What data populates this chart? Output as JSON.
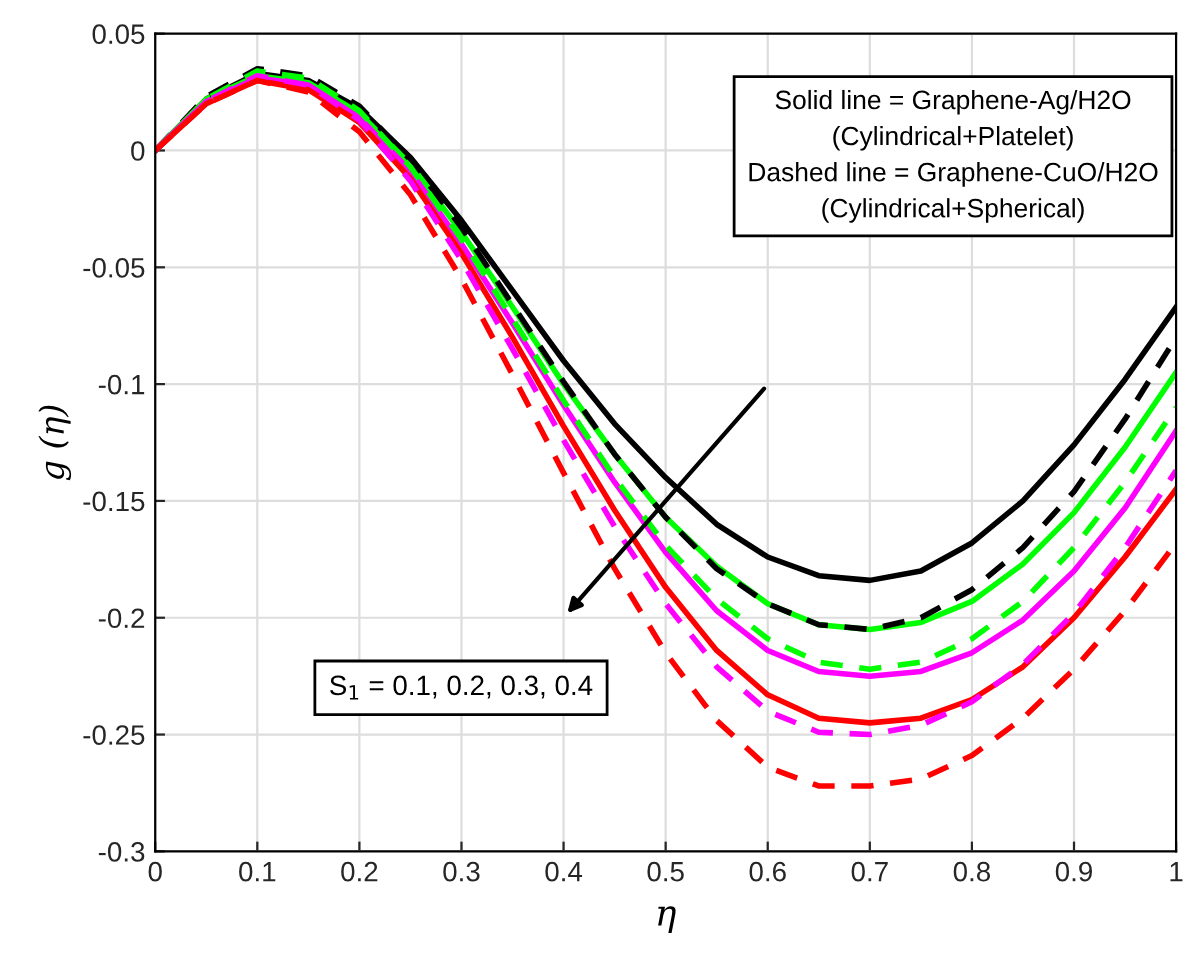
{
  "chart_data": {
    "type": "line",
    "xlabel": "η",
    "ylabel": "g (η)",
    "x": [
      0,
      0.05,
      0.1,
      0.15,
      0.2,
      0.25,
      0.3,
      0.35,
      0.4,
      0.45,
      0.5,
      0.55,
      0.6,
      0.65,
      0.7,
      0.75,
      0.8,
      0.85,
      0.9,
      0.95,
      1
    ],
    "series": [
      {
        "color": "#000000",
        "line_style": "solid",
        "values": [
          0,
          0.022,
          0.033,
          0.03,
          0.018,
          -0.003,
          -0.03,
          -0.06,
          -0.09,
          -0.117,
          -0.14,
          -0.16,
          -0.174,
          -0.182,
          -0.184,
          -0.18,
          -0.168,
          -0.15,
          -0.126,
          -0.098,
          -0.067
        ]
      },
      {
        "color": "#00ff00",
        "line_style": "solid",
        "values": [
          0,
          0.022,
          0.032,
          0.029,
          0.016,
          -0.006,
          -0.035,
          -0.067,
          -0.1,
          -0.13,
          -0.157,
          -0.178,
          -0.194,
          -0.203,
          -0.205,
          -0.202,
          -0.193,
          -0.177,
          -0.155,
          -0.127,
          -0.095
        ]
      },
      {
        "color": "#ff00ff",
        "line_style": "solid",
        "values": [
          0,
          0.021,
          0.031,
          0.028,
          0.014,
          -0.009,
          -0.04,
          -0.074,
          -0.109,
          -0.142,
          -0.172,
          -0.197,
          -0.214,
          -0.223,
          -0.225,
          -0.223,
          -0.215,
          -0.201,
          -0.18,
          -0.153,
          -0.12
        ]
      },
      {
        "color": "#ff0000",
        "line_style": "solid",
        "values": [
          0,
          0.02,
          0.03,
          0.026,
          0.012,
          -0.012,
          -0.044,
          -0.08,
          -0.118,
          -0.154,
          -0.187,
          -0.214,
          -0.233,
          -0.243,
          -0.245,
          -0.243,
          -0.235,
          -0.221,
          -0.2,
          -0.174,
          -0.145
        ]
      },
      {
        "color": "#000000",
        "line_style": "dashed",
        "values": [
          0,
          0.023,
          0.035,
          0.032,
          0.019,
          -0.004,
          -0.033,
          -0.066,
          -0.099,
          -0.13,
          -0.157,
          -0.179,
          -0.194,
          -0.203,
          -0.205,
          -0.2,
          -0.188,
          -0.17,
          -0.146,
          -0.115,
          -0.08
        ]
      },
      {
        "color": "#00ff00",
        "line_style": "dashed",
        "values": [
          0,
          0.022,
          0.034,
          0.031,
          0.017,
          -0.007,
          -0.038,
          -0.072,
          -0.107,
          -0.14,
          -0.169,
          -0.192,
          -0.209,
          -0.219,
          -0.222,
          -0.219,
          -0.209,
          -0.193,
          -0.17,
          -0.142,
          -0.11
        ]
      },
      {
        "color": "#ff00ff",
        "line_style": "dashed",
        "values": [
          0,
          0.021,
          0.032,
          0.028,
          0.013,
          -0.013,
          -0.047,
          -0.085,
          -0.124,
          -0.161,
          -0.194,
          -0.221,
          -0.24,
          -0.249,
          -0.25,
          -0.246,
          -0.236,
          -0.22,
          -0.198,
          -0.17,
          -0.137
        ]
      },
      {
        "color": "#ff0000",
        "line_style": "dashed",
        "values": [
          0,
          0.02,
          0.03,
          0.025,
          0.008,
          -0.019,
          -0.055,
          -0.096,
          -0.138,
          -0.179,
          -0.215,
          -0.244,
          -0.264,
          -0.272,
          -0.272,
          -0.269,
          -0.259,
          -0.243,
          -0.222,
          -0.197,
          -0.168
        ]
      }
    ],
    "annotations": [
      "Solid line = Graphene-Ag/H2O\n(Cylindrical+Platelet)\nDashed line = Graphene-CuO/H2O\n(Cylindrical+Spherical)",
      "S$_{1}$ = 0.1, 0.2, 0.3, 0.4"
    ],
    "xlim": [
      0,
      1
    ],
    "ylim": [
      -0.3,
      0.05
    ],
    "xticks": [
      0,
      0.1,
      0.2,
      0.3,
      0.4,
      0.5,
      0.6,
      0.7,
      0.8,
      0.9,
      1
    ],
    "yticks": [
      -0.3,
      -0.25,
      -0.2,
      -0.15,
      -0.1,
      -0.05,
      0,
      0.05
    ],
    "grid": true,
    "marker": "none"
  }
}
